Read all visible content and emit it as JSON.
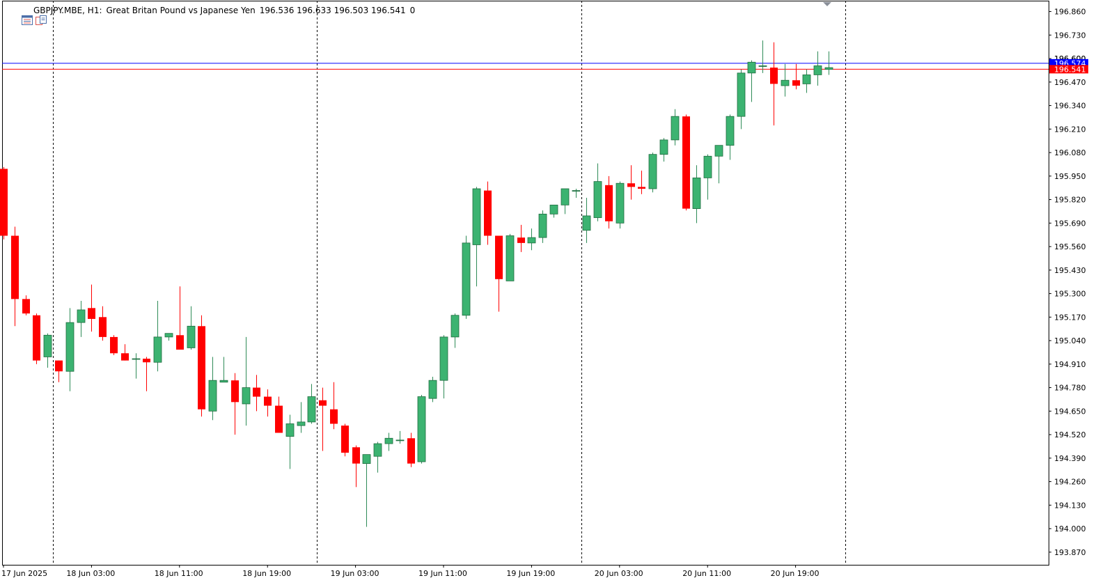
{
  "header": {
    "symbol": "GBPJPY.MBE, H1:",
    "description": "Great Britan Pound vs Japanese Yen",
    "ohlc": "196.536 196.633 196.503 196.541",
    "volume": "0"
  },
  "colors": {
    "bull": "#3cb371",
    "bear": "#ff0000",
    "axis": "#000000",
    "bid_line": "#ff0000",
    "ask_line": "#0000ff",
    "bid_label_bg": "#ff0000",
    "ask_label_bg": "#0000ff",
    "background": "#ffffff"
  },
  "chart_data": {
    "type": "candlestick",
    "timeframe": "H1",
    "ylim": [
      193.8,
      196.92
    ],
    "y_ticks": [
      "196.860",
      "196.730",
      "196.600",
      "196.470",
      "196.340",
      "196.210",
      "196.080",
      "195.950",
      "195.820",
      "195.690",
      "195.560",
      "195.430",
      "195.300",
      "195.170",
      "195.040",
      "194.910",
      "194.780",
      "194.650",
      "194.520",
      "194.390",
      "194.260",
      "194.130",
      "194.000",
      "193.870"
    ],
    "x_labels": [
      {
        "index": 0,
        "text": "17 Jun 2025"
      },
      {
        "index": 8,
        "text": "18 Jun 03:00"
      },
      {
        "index": 16,
        "text": "18 Jun 11:00"
      },
      {
        "index": 24,
        "text": "18 Jun 19:00"
      },
      {
        "index": 32,
        "text": "19 Jun 03:00"
      },
      {
        "index": 40,
        "text": "19 Jun 11:00"
      },
      {
        "index": 48,
        "text": "19 Jun 19:00"
      },
      {
        "index": 56,
        "text": "20 Jun 03:00"
      },
      {
        "index": 64,
        "text": "20 Jun 11:00"
      },
      {
        "index": 72,
        "text": "20 Jun 19:00"
      }
    ],
    "period_separators": [
      4.5,
      28.5,
      52.5,
      76.5
    ],
    "bid": {
      "price": 196.541,
      "label": "196.541"
    },
    "ask": {
      "price": 196.574,
      "label": "196.574"
    },
    "partial_label": "196.600",
    "candles": [
      [
        195.99,
        196.0,
        195.6,
        195.62
      ],
      [
        195.62,
        195.67,
        195.12,
        195.27
      ],
      [
        195.27,
        195.29,
        195.18,
        195.19
      ],
      [
        195.18,
        195.19,
        194.91,
        194.93
      ],
      [
        194.95,
        195.08,
        194.89,
        195.07
      ],
      [
        194.93,
        194.93,
        194.81,
        194.87
      ],
      [
        194.87,
        195.22,
        194.76,
        195.14
      ],
      [
        195.14,
        195.26,
        195.06,
        195.21
      ],
      [
        195.22,
        195.35,
        195.09,
        195.16
      ],
      [
        195.17,
        195.23,
        195.04,
        195.06
      ],
      [
        195.06,
        195.07,
        194.96,
        194.97
      ],
      [
        194.97,
        195.02,
        194.93,
        194.93
      ],
      [
        194.94,
        194.97,
        194.83,
        194.94
      ],
      [
        194.94,
        194.95,
        194.76,
        194.92
      ],
      [
        194.92,
        195.26,
        194.87,
        195.06
      ],
      [
        195.06,
        195.08,
        195.04,
        195.08
      ],
      [
        195.07,
        195.34,
        194.99,
        194.99
      ],
      [
        195.0,
        195.23,
        194.99,
        195.12
      ],
      [
        195.12,
        195.18,
        194.62,
        194.66
      ],
      [
        194.65,
        194.95,
        194.6,
        194.82
      ],
      [
        194.81,
        194.95,
        194.81,
        194.82
      ],
      [
        194.82,
        194.86,
        194.52,
        194.7
      ],
      [
        194.69,
        195.06,
        194.57,
        194.78
      ],
      [
        194.78,
        194.85,
        194.65,
        194.73
      ],
      [
        194.73,
        194.77,
        194.62,
        194.68
      ],
      [
        194.68,
        194.73,
        194.53,
        194.53
      ],
      [
        194.51,
        194.63,
        194.33,
        194.58
      ],
      [
        194.57,
        194.7,
        194.53,
        194.59
      ],
      [
        194.59,
        194.8,
        194.58,
        194.73
      ],
      [
        194.71,
        194.78,
        194.43,
        194.68
      ],
      [
        194.66,
        194.81,
        194.55,
        194.58
      ],
      [
        194.57,
        194.58,
        194.4,
        194.42
      ],
      [
        194.45,
        194.46,
        194.23,
        194.36
      ],
      [
        194.36,
        194.41,
        194.01,
        194.41
      ],
      [
        194.4,
        194.48,
        194.31,
        194.47
      ],
      [
        194.47,
        194.53,
        194.43,
        194.5
      ],
      [
        194.49,
        194.54,
        194.47,
        194.49
      ],
      [
        194.5,
        194.53,
        194.34,
        194.36
      ],
      [
        194.37,
        194.74,
        194.36,
        194.73
      ],
      [
        194.72,
        194.84,
        194.7,
        194.82
      ],
      [
        194.82,
        195.07,
        194.72,
        195.06
      ],
      [
        195.06,
        195.19,
        195.0,
        195.18
      ],
      [
        195.18,
        195.62,
        195.16,
        195.58
      ],
      [
        195.57,
        195.89,
        195.34,
        195.88
      ],
      [
        195.87,
        195.92,
        195.57,
        195.62
      ],
      [
        195.62,
        195.62,
        195.2,
        195.38
      ],
      [
        195.37,
        195.63,
        195.37,
        195.62
      ],
      [
        195.61,
        195.68,
        195.53,
        195.58
      ],
      [
        195.58,
        195.66,
        195.54,
        195.61
      ],
      [
        195.61,
        195.76,
        195.58,
        195.74
      ],
      [
        195.74,
        195.79,
        195.72,
        195.79
      ],
      [
        195.79,
        195.86,
        195.74,
        195.88
      ],
      [
        195.87,
        195.88,
        195.83,
        195.87
      ],
      [
        195.65,
        195.83,
        195.58,
        195.73
      ],
      [
        195.72,
        196.02,
        195.7,
        195.92
      ],
      [
        195.9,
        195.95,
        195.66,
        195.7
      ],
      [
        195.69,
        195.92,
        195.66,
        195.91
      ],
      [
        195.91,
        196.01,
        195.82,
        195.89
      ],
      [
        195.89,
        195.98,
        195.85,
        195.88
      ],
      [
        195.88,
        196.08,
        195.86,
        196.07
      ],
      [
        196.07,
        196.16,
        196.03,
        196.15
      ],
      [
        196.15,
        196.32,
        196.12,
        196.28
      ],
      [
        196.28,
        196.29,
        195.76,
        195.77
      ],
      [
        195.77,
        196.01,
        195.69,
        195.94
      ],
      [
        195.94,
        196.07,
        195.82,
        196.06
      ],
      [
        196.06,
        196.12,
        195.91,
        196.12
      ],
      [
        196.12,
        196.29,
        196.04,
        196.28
      ],
      [
        196.28,
        196.54,
        196.21,
        196.52
      ],
      [
        196.52,
        196.59,
        196.36,
        196.58
      ],
      [
        196.56,
        196.7,
        196.52,
        196.56
      ],
      [
        196.55,
        196.69,
        196.23,
        196.46
      ],
      [
        196.45,
        196.57,
        196.39,
        196.48
      ],
      [
        196.48,
        196.57,
        196.43,
        196.45
      ],
      [
        196.46,
        196.54,
        196.41,
        196.51
      ],
      [
        196.51,
        196.64,
        196.45,
        196.56
      ],
      [
        196.54,
        196.64,
        196.51,
        196.55
      ]
    ]
  }
}
